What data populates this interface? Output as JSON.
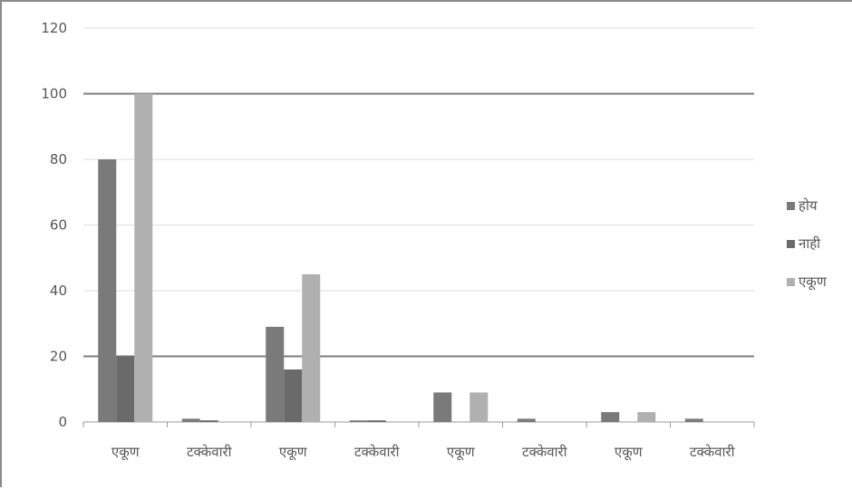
{
  "chart_data": {
    "type": "bar",
    "categories": [
      "एकूण",
      "टक्केवारी",
      "एकूण",
      "टक्केवारी",
      "एकूण",
      "टक्केवारी",
      "एकूण",
      "टक्केवारी"
    ],
    "series": [
      {
        "name": "होय",
        "color": "#7a7a7a",
        "values": [
          80,
          1,
          29,
          0.5,
          9,
          1,
          3,
          1
        ]
      },
      {
        "name": "नाही",
        "color": "#6a6a6a",
        "values": [
          20,
          0.5,
          16,
          0.5,
          0,
          0,
          0,
          0
        ]
      },
      {
        "name": "एकूण",
        "color": "#b0b0b0",
        "values": [
          100,
          0,
          45,
          0,
          9,
          0,
          3,
          0
        ]
      }
    ],
    "ylim": [
      0,
      120
    ],
    "yticks": [
      0,
      20,
      40,
      60,
      80,
      100,
      120
    ],
    "grid": true,
    "legend_position": "right"
  }
}
